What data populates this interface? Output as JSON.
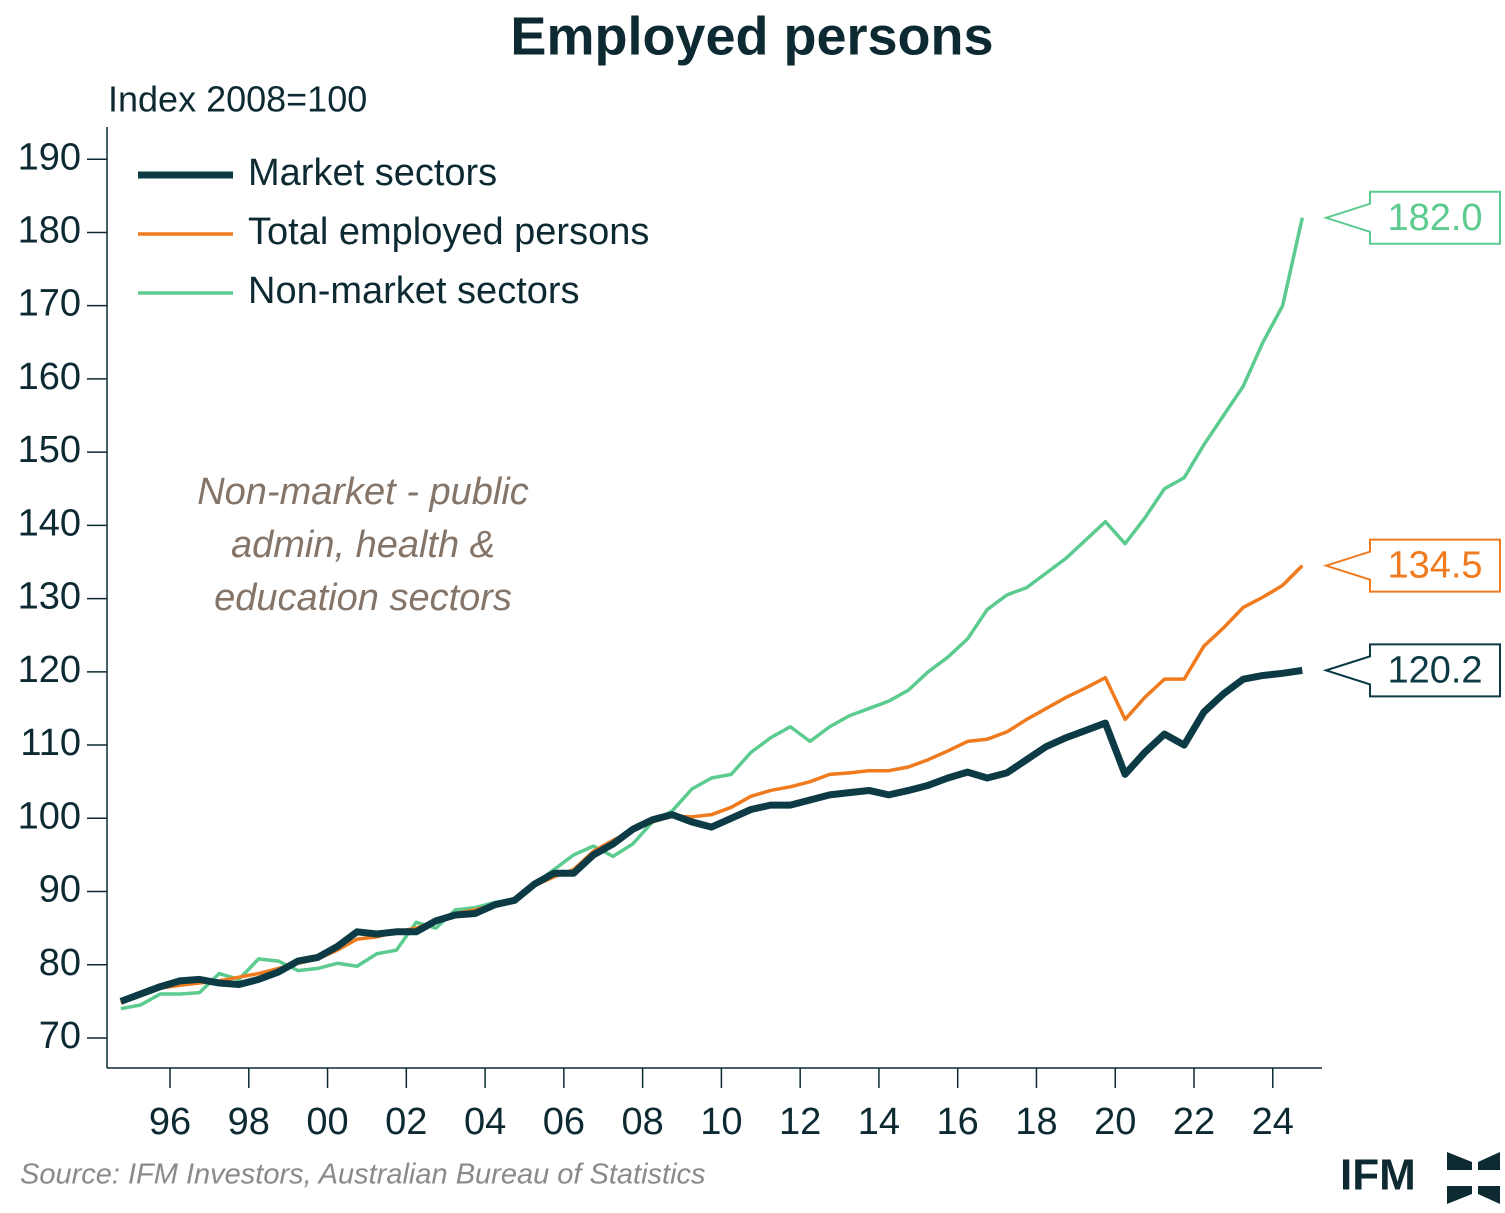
{
  "chart_data": {
    "type": "line",
    "title": "Employed persons",
    "y_label": "Index 2008=100",
    "annotation": [
      "Non-market - public",
      "admin, health &",
      "education sectors"
    ],
    "source": "Source: IFM Investors, Australian Bureau of Statistics",
    "logo": "IFM",
    "x": [
      1994.75,
      1995.25,
      1995.75,
      1996.25,
      1996.75,
      1997.25,
      1997.75,
      1998.25,
      1998.75,
      1999.25,
      1999.75,
      2000.25,
      2000.75,
      2001.25,
      2001.75,
      2002.25,
      2002.75,
      2003.25,
      2003.75,
      2004.25,
      2004.75,
      2005.25,
      2005.75,
      2006.25,
      2006.75,
      2007.25,
      2007.75,
      2008.25,
      2008.75,
      2009.25,
      2009.75,
      2010.25,
      2010.75,
      2011.25,
      2011.75,
      2012.25,
      2012.75,
      2013.25,
      2013.75,
      2014.25,
      2014.75,
      2015.25,
      2015.75,
      2016.25,
      2016.75,
      2017.25,
      2017.75,
      2018.25,
      2018.75,
      2019.25,
      2019.75,
      2020.25,
      2020.75,
      2021.25,
      2021.75,
      2022.25,
      2022.75,
      2023.25,
      2023.75,
      2024.25,
      2024.75
    ],
    "series": [
      {
        "name": "Non-market sectors",
        "color": "#5ccb8f",
        "width": 3.5,
        "end_label": "182.0",
        "values": [
          74,
          74.5,
          76,
          76,
          76.2,
          78.8,
          78,
          80.8,
          80.5,
          79.2,
          79.5,
          80.2,
          79.8,
          81.5,
          82,
          85.8,
          85,
          87.5,
          87.8,
          88.5,
          89,
          91,
          93,
          95,
          96.2,
          94.8,
          96.5,
          99.5,
          101,
          104,
          105.5,
          106,
          109,
          111,
          112.5,
          110.5,
          112.5,
          114,
          115,
          116,
          117.5,
          120,
          122,
          124.5,
          128.5,
          130.5,
          131.5,
          133.5,
          135.5,
          138,
          140.5,
          137.5,
          141,
          145,
          146.5,
          151,
          155,
          159,
          165,
          170,
          182
        ]
      },
      {
        "name": "Total employed persons",
        "color": "#f07b1f",
        "width": 3.5,
        "end_label": "134.5",
        "values": [
          74.8,
          75.8,
          76.8,
          77.2,
          77.5,
          77.8,
          78.3,
          78.8,
          79.5,
          80.2,
          80.8,
          82,
          83.5,
          83.8,
          84.5,
          85,
          86,
          87,
          87.5,
          88.2,
          89,
          90.8,
          92,
          93,
          95.5,
          97,
          98.3,
          99.5,
          100.3,
          100.2,
          100.5,
          101.5,
          103,
          103.8,
          104.3,
          105,
          106,
          106.2,
          106.5,
          106.5,
          107,
          108,
          109.2,
          110.5,
          110.8,
          111.8,
          113.5,
          115,
          116.5,
          117.8,
          119.2,
          113.5,
          116.5,
          119,
          119,
          123.5,
          126,
          128.8,
          130.2,
          131.8,
          134.5
        ]
      },
      {
        "name": "Market sectors",
        "color": "#0d3b45",
        "width": 7,
        "end_label": "120.2",
        "values": [
          75,
          76,
          77,
          77.8,
          78,
          77.5,
          77.3,
          78,
          79,
          80.5,
          81,
          82.5,
          84.5,
          84.2,
          84.5,
          84.5,
          86,
          86.8,
          87,
          88.2,
          88.8,
          91,
          92.5,
          92.5,
          95,
          96.5,
          98.5,
          99.8,
          100.5,
          99.5,
          98.8,
          100,
          101.2,
          101.8,
          101.8,
          102.5,
          103.2,
          103.5,
          103.8,
          103.2,
          103.8,
          104.5,
          105.5,
          106.3,
          105.5,
          106.2,
          108,
          109.8,
          111,
          112,
          113,
          106,
          109,
          111.5,
          110,
          114.5,
          117,
          119,
          119.5,
          119.8,
          120.2
        ]
      }
    ],
    "legend_order": [
      2,
      1,
      0
    ],
    "xlim": [
      1994.4,
      2025.25
    ],
    "xticks": [
      {
        "value": 1996,
        "label": "96"
      },
      {
        "value": 1998,
        "label": "98"
      },
      {
        "value": 2000,
        "label": "00"
      },
      {
        "value": 2002,
        "label": "02"
      },
      {
        "value": 2004,
        "label": "04"
      },
      {
        "value": 2006,
        "label": "06"
      },
      {
        "value": 2008,
        "label": "08"
      },
      {
        "value": 2010,
        "label": "10"
      },
      {
        "value": 2012,
        "label": "12"
      },
      {
        "value": 2014,
        "label": "14"
      },
      {
        "value": 2016,
        "label": "16"
      },
      {
        "value": 2018,
        "label": "18"
      },
      {
        "value": 2020,
        "label": "20"
      },
      {
        "value": 2022,
        "label": "22"
      },
      {
        "value": 2024,
        "label": "24"
      }
    ],
    "ylim": [
      65.9,
      194.4
    ],
    "yticks": [
      70,
      80,
      90,
      100,
      110,
      120,
      130,
      140,
      150,
      160,
      170,
      180,
      190
    ],
    "grid": false
  }
}
